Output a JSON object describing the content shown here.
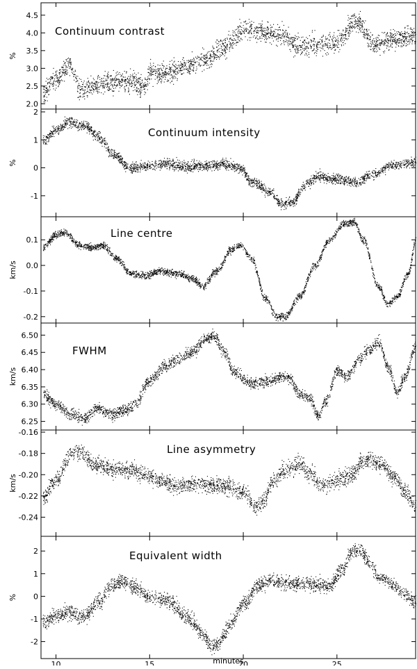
{
  "chart_data": [
    {
      "type": "scatter",
      "title": "Continuum contrast",
      "ylabel": "%",
      "xlim": [
        9.2,
        29.2
      ],
      "ylim": [
        1.85,
        4.85
      ],
      "yticks": [
        "2.0",
        "2.5",
        "3.0",
        "3.5",
        "4.0",
        "4.5"
      ],
      "ytick_values": [
        2.0,
        2.5,
        3.0,
        3.5,
        4.0,
        4.5
      ],
      "trend": {
        "x": [
          9.3,
          10.0,
          10.7,
          11.3,
          12.0,
          13.0,
          14.0,
          14.7,
          15.0,
          16.0,
          17.0,
          18.0,
          19.0,
          20.0,
          21.0,
          22.0,
          23.0,
          24.0,
          25.0,
          26.0,
          27.0,
          28.0,
          29.2
        ],
        "y": [
          2.35,
          2.7,
          3.1,
          2.4,
          2.5,
          2.6,
          2.65,
          2.5,
          2.85,
          2.9,
          3.1,
          3.25,
          3.6,
          4.1,
          4.05,
          3.95,
          3.6,
          3.7,
          3.75,
          4.35,
          3.7,
          3.85,
          3.9
        ]
      },
      "noise": 0.28
    },
    {
      "type": "scatter",
      "title": "Continuum intensity",
      "ylabel": "%",
      "xlim": [
        9.2,
        29.2
      ],
      "ylim": [
        -1.75,
        2.1
      ],
      "yticks": [
        "-1",
        "0",
        "1",
        "2"
      ],
      "ytick_values": [
        -1,
        0,
        1,
        2
      ],
      "trend": {
        "x": [
          9.3,
          10.0,
          10.7,
          11.5,
          12.3,
          13.0,
          14.0,
          15.0,
          16.0,
          17.0,
          18.0,
          19.0,
          19.8,
          20.5,
          21.5,
          22.0,
          22.6,
          23.3,
          24.0,
          25.0,
          26.0,
          27.0,
          28.0,
          29.2
        ],
        "y": [
          1.0,
          1.35,
          1.65,
          1.5,
          1.1,
          0.5,
          0.0,
          0.1,
          0.15,
          0.05,
          0.1,
          0.15,
          0.0,
          -0.5,
          -0.9,
          -1.3,
          -1.2,
          -0.6,
          -0.3,
          -0.4,
          -0.5,
          -0.2,
          0.1,
          0.2
        ]
      },
      "noise": 0.18
    },
    {
      "type": "scatter",
      "title": "Line centre",
      "ylabel": "km/s",
      "xlim": [
        9.2,
        29.2
      ],
      "ylim": [
        -0.225,
        0.19
      ],
      "yticks": [
        "-0.2",
        "-0.1",
        "0.0",
        "0.1"
      ],
      "ytick_values": [
        -0.2,
        -0.1,
        0.0,
        0.1
      ],
      "trend": {
        "x": [
          9.3,
          10.0,
          10.5,
          11.2,
          12.0,
          12.5,
          13.2,
          14.0,
          14.8,
          15.5,
          16.5,
          17.3,
          17.8,
          18.6,
          19.3,
          19.8,
          20.4,
          21.2,
          21.8,
          22.2,
          23.0,
          23.8,
          24.6,
          25.3,
          25.9,
          26.4,
          27.2,
          27.7,
          28.2,
          28.8,
          29.2
        ],
        "y": [
          0.07,
          0.12,
          0.13,
          0.08,
          0.07,
          0.08,
          0.03,
          -0.03,
          -0.04,
          -0.02,
          -0.03,
          -0.05,
          -0.08,
          -0.02,
          0.06,
          0.08,
          0.03,
          -0.13,
          -0.2,
          -0.2,
          -0.12,
          0.0,
          0.1,
          0.16,
          0.17,
          0.1,
          -0.08,
          -0.15,
          -0.12,
          -0.03,
          0.1
        ]
      },
      "noise": 0.014
    },
    {
      "type": "scatter",
      "title": "FWHM",
      "ylabel": "km/s",
      "xlim": [
        9.2,
        29.2
      ],
      "ylim": [
        6.225,
        6.535
      ],
      "yticks": [
        "6.25",
        "6.30",
        "6.35",
        "6.40",
        "6.45",
        "6.50"
      ],
      "ytick_values": [
        6.25,
        6.3,
        6.35,
        6.4,
        6.45,
        6.5
      ],
      "trend": {
        "x": [
          9.3,
          10.0,
          10.8,
          11.5,
          12.2,
          13.0,
          13.5,
          14.2,
          15.0,
          15.8,
          16.5,
          17.2,
          18.0,
          18.4,
          19.0,
          19.5,
          20.5,
          21.5,
          22.0,
          22.4,
          23.0,
          23.5,
          24.0,
          24.4,
          25.0,
          25.5,
          26.2,
          26.7,
          27.2,
          27.8,
          28.2,
          28.6,
          29.2
        ],
        "y": [
          6.33,
          6.3,
          6.27,
          6.26,
          6.29,
          6.27,
          6.28,
          6.3,
          6.37,
          6.41,
          6.43,
          6.45,
          6.49,
          6.5,
          6.45,
          6.39,
          6.36,
          6.37,
          6.38,
          6.38,
          6.33,
          6.32,
          6.27,
          6.31,
          6.4,
          6.38,
          6.43,
          6.46,
          6.48,
          6.4,
          6.33,
          6.38,
          6.47
        ]
      },
      "noise": 0.016
    },
    {
      "type": "scatter",
      "title": "Line asymmetry",
      "ylabel": "km/s",
      "xlim": [
        9.2,
        29.2
      ],
      "ylim": [
        -0.258,
        -0.158
      ],
      "yticks": [
        "-0.16",
        "-0.18",
        "-0.20",
        "-0.22",
        "-0.24"
      ],
      "ytick_values": [
        -0.16,
        -0.18,
        -0.2,
        -0.22,
        -0.24
      ],
      "trend": {
        "x": [
          9.3,
          10.0,
          10.8,
          11.3,
          12.0,
          13.0,
          14.0,
          14.7,
          15.5,
          16.5,
          17.5,
          18.5,
          19.3,
          20.0,
          20.6,
          21.0,
          21.6,
          22.2,
          23.0,
          23.6,
          24.2,
          25.0,
          25.8,
          26.3,
          26.8,
          27.3,
          28.0,
          28.6,
          29.2
        ],
        "y": [
          -0.22,
          -0.205,
          -0.18,
          -0.178,
          -0.19,
          -0.195,
          -0.195,
          -0.2,
          -0.205,
          -0.21,
          -0.208,
          -0.21,
          -0.212,
          -0.215,
          -0.23,
          -0.225,
          -0.205,
          -0.195,
          -0.19,
          -0.2,
          -0.21,
          -0.205,
          -0.2,
          -0.188,
          -0.185,
          -0.19,
          -0.2,
          -0.215,
          -0.23
        ]
      },
      "noise": 0.0075
    },
    {
      "type": "scatter",
      "title": "Equivalent width",
      "ylabel": "%",
      "xlabel": "minutes",
      "xlim": [
        9.2,
        29.2
      ],
      "ylim": [
        -2.75,
        2.65
      ],
      "yticks": [
        "-2",
        "-1",
        "0",
        "1",
        "2"
      ],
      "ytick_values": [
        -2,
        -1,
        0,
        1,
        2
      ],
      "xticks": [
        "10",
        "15",
        "20",
        "25"
      ],
      "xtick_values": [
        10,
        15,
        20,
        25
      ],
      "trend": {
        "x": [
          9.3,
          10.0,
          10.7,
          11.5,
          12.3,
          13.0,
          13.6,
          14.2,
          15.0,
          16.0,
          17.0,
          17.8,
          18.3,
          18.7,
          19.3,
          20.0,
          20.8,
          21.5,
          22.0,
          23.0,
          24.0,
          24.6,
          25.3,
          25.8,
          26.2,
          26.7,
          27.3,
          28.0,
          28.6,
          29.2
        ],
        "y": [
          -1.1,
          -0.85,
          -0.7,
          -0.9,
          -0.2,
          0.5,
          0.7,
          0.4,
          0.0,
          -0.2,
          -0.9,
          -1.6,
          -2.2,
          -2.0,
          -1.2,
          -0.3,
          0.5,
          0.7,
          0.6,
          0.6,
          0.5,
          0.5,
          1.2,
          2.0,
          2.1,
          1.5,
          0.8,
          0.5,
          0.1,
          -0.3
        ]
      },
      "noise": 0.32
    }
  ]
}
